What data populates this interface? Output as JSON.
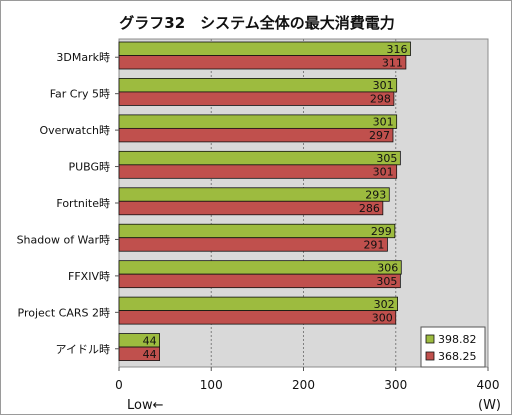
{
  "chart_data": {
    "type": "bar",
    "orientation": "horizontal",
    "title": "グラフ32　システム全体の最大消費電力",
    "categories": [
      "3DMark時",
      "Far Cry 5時",
      "Overwatch時",
      "PUBG時",
      "Fortnite時",
      "Shadow of War時",
      "FFXIV時",
      "Project CARS 2時",
      "アイドル時"
    ],
    "series": [
      {
        "name": "398.82",
        "color": "#9dbb3f",
        "values": [
          316,
          301,
          301,
          305,
          293,
          299,
          306,
          302,
          44
        ]
      },
      {
        "name": "368.25",
        "color": "#c0504d",
        "values": [
          311,
          298,
          297,
          301,
          286,
          291,
          305,
          300,
          44
        ]
      }
    ],
    "xlim": [
      0,
      400
    ],
    "xticks": [
      "0",
      "100",
      "200",
      "300",
      "400"
    ],
    "grid": true,
    "legend_position": "bottom-right",
    "axis_unit": "(W)",
    "direction_note": "Low←"
  }
}
